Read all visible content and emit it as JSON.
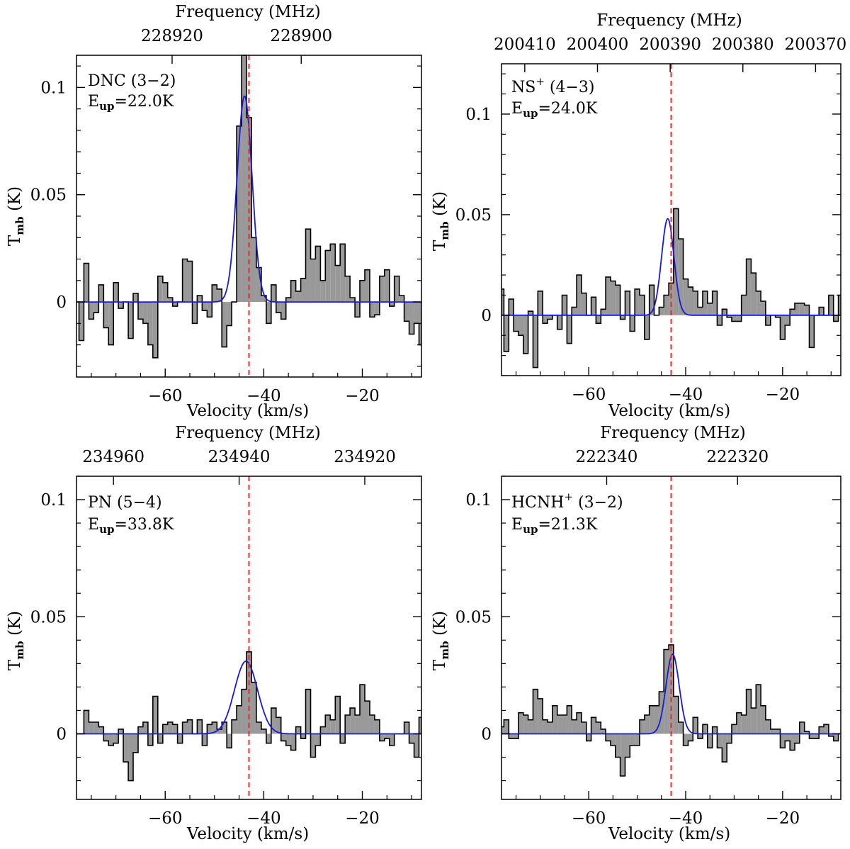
{
  "chart_data": [
    {
      "type": "line",
      "panel": "top-left",
      "species": "DNC (3−2)",
      "eup_label": "E",
      "eup_sub": "up",
      "eup_value": "=22.0K",
      "xlabel": "Velocity (km/s)",
      "ylabel_main": "T",
      "ylabel_sub": "mb",
      "ylabel_unit": " (K)",
      "top_label": "Frequency (MHz)",
      "xlim": [
        -78,
        -8
      ],
      "ylim": [
        -0.035,
        0.115
      ],
      "x_ticks": [
        {
          "v": -60,
          "label": "−60"
        },
        {
          "v": -40,
          "label": "−40"
        },
        {
          "v": -20,
          "label": "−20"
        }
      ],
      "y_ticks": [
        {
          "v": 0,
          "label": "0"
        },
        {
          "v": 0.05,
          "label": "0.05"
        },
        {
          "v": 0.1,
          "label": "0.1"
        }
      ],
      "top_ticks": [
        {
          "v": -58.6,
          "label": "228920"
        },
        {
          "v": -32.4,
          "label": "228900"
        }
      ],
      "vline": -43.0,
      "spectrum": {
        "x0": -78.5,
        "dx": 1.0,
        "y": [
          0.0,
          -0.018,
          0.018,
          -0.008,
          -0.005,
          0.008,
          -0.012,
          -0.02,
          0.009,
          -0.003,
          0.0,
          -0.017,
          0.004,
          -0.008,
          -0.01,
          -0.02,
          -0.026,
          0.012,
          0.009,
          0.002,
          -0.002,
          0.0,
          0.02,
          0.019,
          -0.01,
          0.003,
          -0.004,
          -0.007,
          0.008,
          0.006,
          -0.021,
          -0.011,
          0.0,
          0.082,
          0.115,
          0.086,
          0.03,
          0.016,
          0.003,
          -0.01,
          0.008,
          -0.005,
          -0.008,
          0.002,
          0.01,
          0.005,
          0.011,
          0.034,
          0.02,
          0.026,
          0.01,
          0.024,
          0.027,
          0.017,
          0.027,
          0.012,
          0.002,
          -0.007,
          0.01,
          0.015,
          -0.007,
          -0.006,
          0.012,
          0.015,
          -0.002,
          0.012,
          0.003,
          -0.009,
          -0.015,
          -0.01,
          -0.02
        ]
      },
      "fit": {
        "amp": 0.096,
        "center": -43.9,
        "fwhm": 3.6
      }
    },
    {
      "type": "line",
      "panel": "top-right",
      "species": "NS",
      "species_sup": "+",
      "species_rest": " (4−3)",
      "eup_label": "E",
      "eup_sub": "up",
      "eup_value": "=24.0K",
      "xlabel": "Velocity (km/s)",
      "ylabel_main": "T",
      "ylabel_sub": "mb",
      "ylabel_unit": " (K)",
      "top_label": "Frequency (MHz)",
      "xlim": [
        -78,
        -8
      ],
      "ylim": [
        -0.03,
        0.125
      ],
      "x_ticks": [
        {
          "v": -60,
          "label": "−60"
        },
        {
          "v": -40,
          "label": "−40"
        },
        {
          "v": -20,
          "label": "−20"
        }
      ],
      "y_ticks": [
        {
          "v": 0,
          "label": "0"
        },
        {
          "v": 0.05,
          "label": "0.05"
        },
        {
          "v": 0.1,
          "label": "0.1"
        }
      ],
      "top_ticks": [
        {
          "v": -73.2,
          "label": "200410"
        },
        {
          "v": -58.2,
          "label": "200400"
        },
        {
          "v": -43.2,
          "label": "200390"
        },
        {
          "v": -28.2,
          "label": "200380"
        },
        {
          "v": -13.2,
          "label": "200370"
        }
      ],
      "vline": -43.0,
      "spectrum": {
        "x0": -78.5,
        "dx": 1.0,
        "y": [
          0.013,
          -0.018,
          0.008,
          -0.008,
          -0.01,
          -0.019,
          0.002,
          -0.026,
          0.012,
          -0.004,
          -0.002,
          0.0,
          -0.007,
          0.01,
          -0.014,
          0.004,
          0.02,
          0.011,
          0.0,
          0.009,
          -0.004,
          0.003,
          0.019,
          0.017,
          0.015,
          -0.002,
          0.012,
          -0.008,
          0.013,
          0.01,
          -0.012,
          0.015,
          0.0,
          0.004,
          0.01,
          0.016,
          0.053,
          0.038,
          0.018,
          0.014,
          0.012,
          0.004,
          0.012,
          0.006,
          0.012,
          -0.005,
          0.003,
          -0.001,
          -0.003,
          -0.003,
          0.01,
          0.028,
          0.021,
          0.012,
          0.007,
          -0.005,
          0.0,
          -0.001,
          -0.012,
          -0.005,
          0.003,
          0.006,
          0.006,
          0.005,
          -0.016,
          0.0,
          0.004,
          0.0,
          0.01,
          -0.003,
          0.01
        ]
      },
      "fit": {
        "amp": 0.048,
        "center": -43.7,
        "fwhm": 3.0
      }
    },
    {
      "type": "line",
      "panel": "bottom-left",
      "species": "PN (5−4)",
      "eup_label": "E",
      "eup_sub": "up",
      "eup_value": "=33.8K",
      "xlabel": "Velocity (km/s)",
      "ylabel_main": "T",
      "ylabel_sub": "mb",
      "ylabel_unit": " (K)",
      "top_label": "Frequency (MHz)",
      "xlim": [
        -78,
        -8
      ],
      "ylim": [
        -0.028,
        0.11
      ],
      "x_ticks": [
        {
          "v": -60,
          "label": "−60"
        },
        {
          "v": -40,
          "label": "−40"
        },
        {
          "v": -20,
          "label": "−20"
        }
      ],
      "y_ticks": [
        {
          "v": 0,
          "label": "0"
        },
        {
          "v": 0.05,
          "label": "0.05"
        },
        {
          "v": 0.1,
          "label": "0.1"
        }
      ],
      "top_ticks": [
        {
          "v": -70.5,
          "label": "234960"
        },
        {
          "v": -45.0,
          "label": "234940"
        },
        {
          "v": -19.5,
          "label": "234920"
        }
      ],
      "vline": -43.0,
      "spectrum": {
        "x0": -78.5,
        "dx": 1.0,
        "y": [
          0.0,
          0.0,
          0.01,
          0.005,
          0.005,
          0.003,
          -0.003,
          -0.005,
          -0.004,
          0.002,
          -0.012,
          -0.02,
          -0.008,
          0.003,
          0.005,
          -0.005,
          0.016,
          -0.004,
          0.004,
          0.005,
          0.004,
          -0.004,
          0.005,
          0.006,
          0.0,
          0.006,
          -0.005,
          0.004,
          0.005,
          0.002,
          0.005,
          -0.006,
          0.006,
          0.012,
          0.019,
          0.035,
          0.022,
          0.005,
          0.002,
          -0.004,
          0.011,
          0.007,
          -0.003,
          -0.005,
          -0.007,
          0.003,
          -0.002,
          0.019,
          -0.01,
          -0.005,
          0.003,
          0.008,
          0.006,
          0.016,
          -0.004,
          0.008,
          0.011,
          0.008,
          0.021,
          0.014,
          0.008,
          0.006,
          -0.003,
          -0.002,
          -0.005,
          0.0,
          0.0,
          0.005,
          -0.004,
          -0.01,
          0.007
        ]
      },
      "fit": {
        "amp": 0.031,
        "center": -43.6,
        "fwhm": 5.5
      }
    },
    {
      "type": "line",
      "panel": "bottom-right",
      "species": "HCNH",
      "species_sup": "+",
      "species_rest": " (3−2)",
      "eup_label": "E",
      "eup_sub": "up",
      "eup_value": "=21.3K",
      "xlabel": "Velocity (km/s)",
      "ylabel_main": "T",
      "ylabel_sub": "mb",
      "ylabel_unit": " (K)",
      "top_label": "Frequency (MHz)",
      "xlim": [
        -78,
        -8
      ],
      "ylim": [
        -0.028,
        0.11
      ],
      "x_ticks": [
        {
          "v": -60,
          "label": "−60"
        },
        {
          "v": -40,
          "label": "−40"
        },
        {
          "v": -20,
          "label": "−20"
        }
      ],
      "y_ticks": [
        {
          "v": 0,
          "label": "0"
        },
        {
          "v": 0.05,
          "label": "0.05"
        },
        {
          "v": 0.1,
          "label": "0.1"
        }
      ],
      "top_ticks": [
        {
          "v": -56.3,
          "label": "222340"
        },
        {
          "v": -29.3,
          "label": "222320"
        }
      ],
      "vline": -43.0,
      "spectrum": {
        "x0": -78.5,
        "dx": 1.0,
        "y": [
          0.003,
          0.006,
          -0.002,
          -0.002,
          0.009,
          0.008,
          0.006,
          0.019,
          0.015,
          0.006,
          0.005,
          0.012,
          0.008,
          0.008,
          0.012,
          0.006,
          0.009,
          0.005,
          -0.003,
          0.007,
          0.005,
          0.002,
          -0.003,
          -0.005,
          -0.01,
          -0.018,
          -0.01,
          -0.005,
          -0.005,
          0.006,
          0.008,
          0.012,
          0.012,
          0.018,
          0.036,
          0.038,
          0.016,
          0.005,
          -0.005,
          -0.003,
          0.007,
          -0.002,
          0.004,
          -0.006,
          0.003,
          -0.006,
          -0.012,
          -0.004,
          0.004,
          0.009,
          0.008,
          0.019,
          0.011,
          0.021,
          0.012,
          0.006,
          0.002,
          0.002,
          -0.006,
          -0.003,
          -0.007,
          -0.004,
          0.005,
          0.001,
          -0.002,
          -0.002,
          0.003,
          0.004,
          -0.001,
          -0.003,
          0.0
        ]
      },
      "fit": {
        "amp": 0.034,
        "center": -42.7,
        "fwhm": 3.2
      }
    }
  ]
}
